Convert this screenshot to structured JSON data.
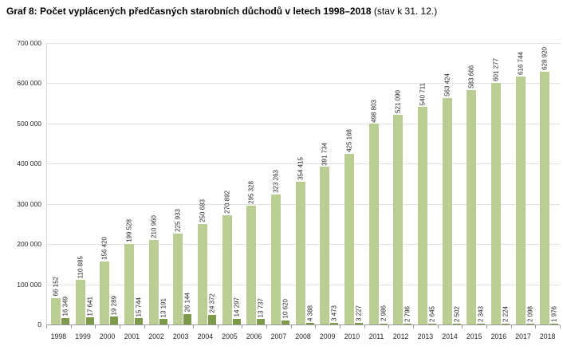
{
  "title": {
    "main": "Graf 8: Počet vyplácených předčasných starobních důchodů v letech 1998–2018",
    "suffix": " (stav k 31. 12.)"
  },
  "colors": {
    "light_bar": "#bace94",
    "dark_bar": "#7d9a4a",
    "gridline": "#e2e2e2",
    "axis": "#9a9a9a"
  },
  "chart_data": {
    "type": "bar",
    "title": "Graf 8: Počet vyplácených předčasných starobních důchodů v letech 1998–2018 (stav k 31. 12.)",
    "categories": [
      1998,
      1999,
      2000,
      2001,
      2002,
      2003,
      2004,
      2005,
      2006,
      2007,
      2008,
      2009,
      2010,
      2011,
      2012,
      2013,
      2014,
      2015,
      2016,
      2017,
      2018
    ],
    "series": [
      {
        "name": "series-1-light-green",
        "color": "#bace94",
        "values": [
          66152,
          110885,
          156420,
          199528,
          210960,
          225933,
          250683,
          270892,
          295328,
          323263,
          354415,
          391734,
          425168,
          498803,
          521090,
          540711,
          563424,
          583666,
          601277,
          616744,
          628920
        ]
      },
      {
        "name": "series-2-dark-green",
        "color": "#7d9a4a",
        "values": [
          16349,
          17641,
          19289,
          15744,
          13191,
          26144,
          24372,
          14297,
          13737,
          10620,
          4388,
          3473,
          3227,
          2986,
          2796,
          2645,
          2502,
          2343,
          2224,
          2098,
          1976
        ]
      }
    ],
    "xlabel": "",
    "ylabel": "",
    "ylim": [
      0,
      700000
    ],
    "ytick_step": 100000,
    "yticks": [
      "0",
      "100 000",
      "200 000",
      "300 000",
      "400 000",
      "500 000",
      "600 000",
      "700 000"
    ],
    "grid": true,
    "legend_position": "none",
    "value_labels": "rotated-vertical"
  }
}
